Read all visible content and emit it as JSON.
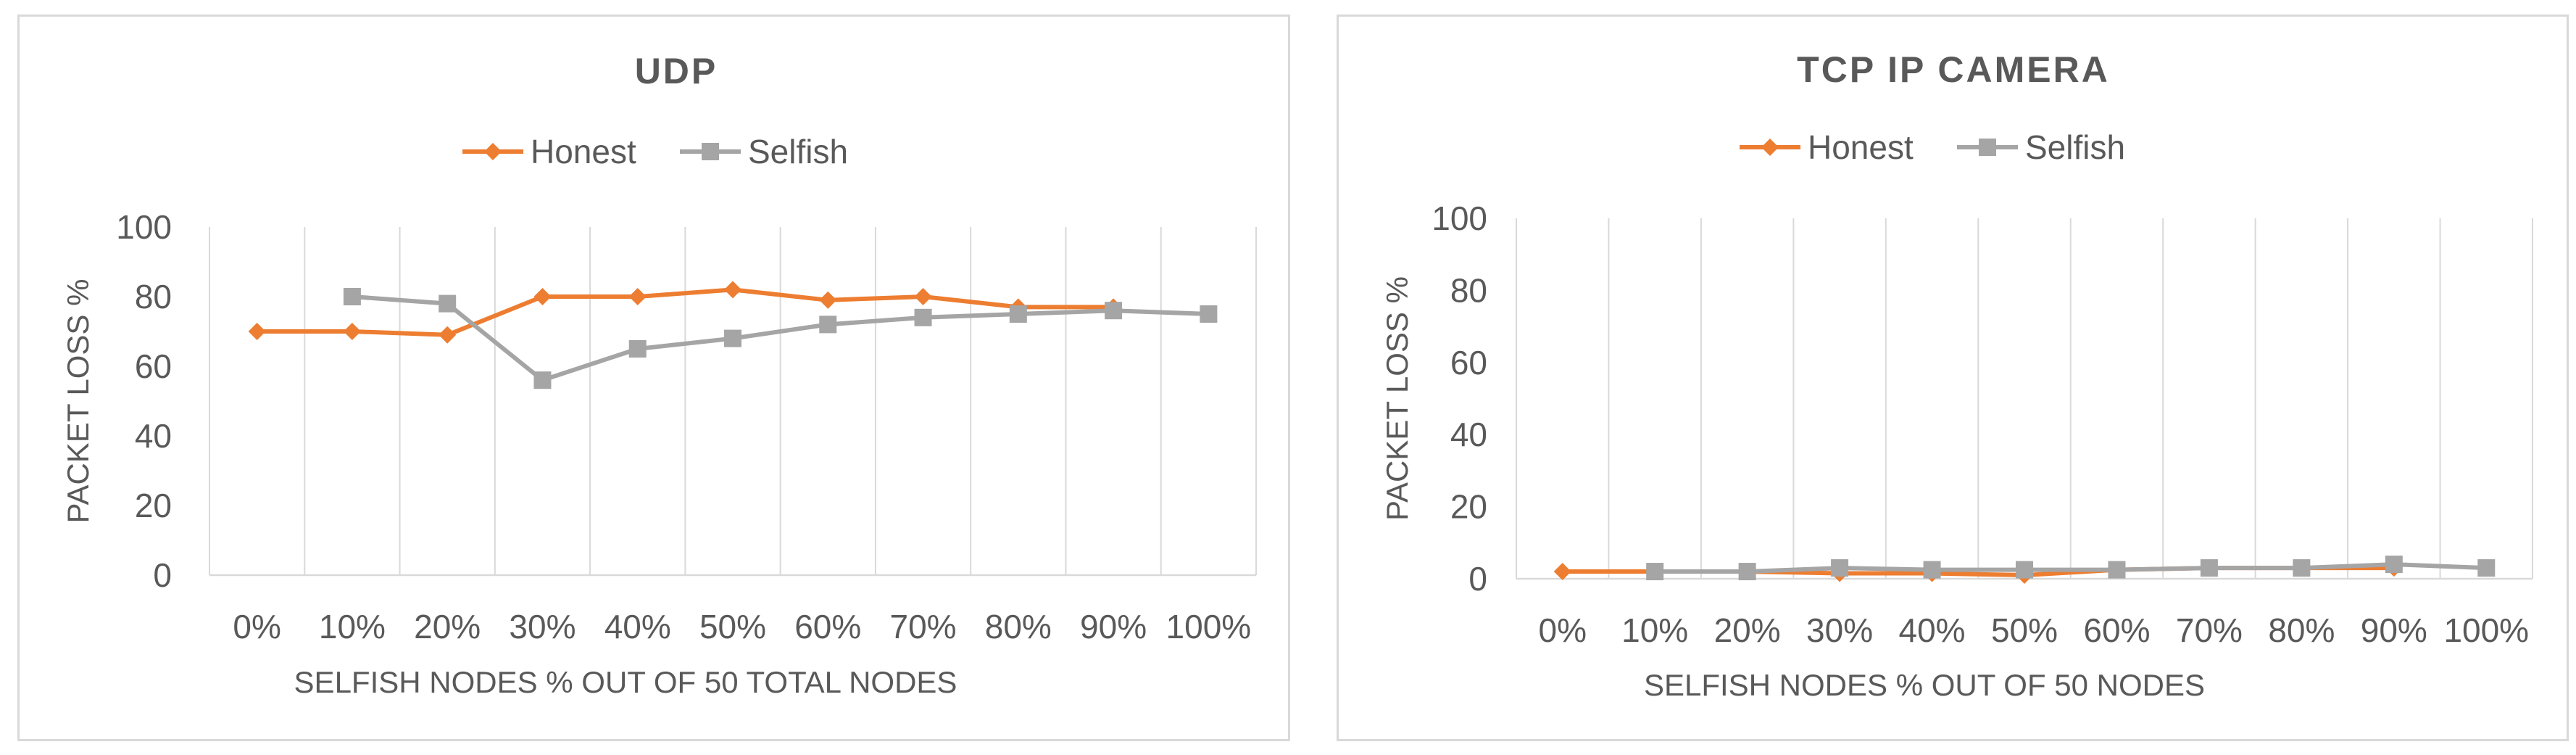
{
  "chart_data": [
    {
      "type": "line",
      "title": "UDP",
      "xlabel": "SELFISH NODES % OUT OF 50 TOTAL NODES",
      "ylabel": "PACKET LOSS %",
      "categories": [
        "0%",
        "10%",
        "20%",
        "30%",
        "40%",
        "50%",
        "60%",
        "70%",
        "80%",
        "90%",
        "100%"
      ],
      "ylim": [
        0,
        100
      ],
      "yticks": [
        0,
        20,
        40,
        60,
        80,
        100
      ],
      "grid": "vertical",
      "legend_position": "top",
      "series": [
        {
          "name": "Honest",
          "color": "#ED7D31",
          "marker": "diamond",
          "values": [
            70,
            70,
            69,
            80,
            80,
            82,
            79,
            80,
            77,
            77,
            null
          ]
        },
        {
          "name": "Selfish",
          "color": "#A5A5A5",
          "marker": "square",
          "values": [
            null,
            80,
            78,
            56,
            65,
            68,
            72,
            74,
            75,
            76,
            75
          ]
        }
      ]
    },
    {
      "type": "line",
      "title": "TCP IP CAMERA",
      "xlabel": "SELFISH NODES % OUT OF 50 NODES",
      "ylabel": "PACKET LOSS %",
      "categories": [
        "0%",
        "10%",
        "20%",
        "30%",
        "40%",
        "50%",
        "60%",
        "70%",
        "80%",
        "90%",
        "100%"
      ],
      "ylim": [
        0,
        100
      ],
      "yticks": [
        0,
        20,
        40,
        60,
        80,
        100
      ],
      "grid": "vertical",
      "legend_position": "top",
      "series": [
        {
          "name": "Honest",
          "color": "#ED7D31",
          "marker": "diamond",
          "values": [
            2,
            2,
            2,
            1.5,
            1.5,
            1,
            2.5,
            3,
            3,
            3,
            null
          ]
        },
        {
          "name": "Selfish",
          "color": "#A5A5A5",
          "marker": "square",
          "values": [
            null,
            2,
            2,
            3,
            2.5,
            2.5,
            2.5,
            3,
            3,
            4,
            3
          ]
        }
      ]
    }
  ]
}
